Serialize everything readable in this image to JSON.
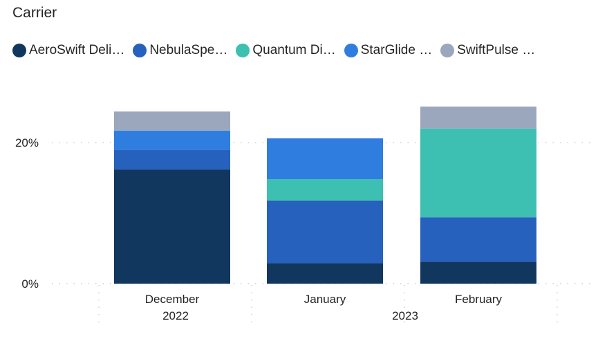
{
  "legend": {
    "title": "Carrier",
    "items": [
      {
        "label": "AeroSwift Deli…",
        "color": "#12375F",
        "icon": "circle-icon"
      },
      {
        "label": "NebulaSpe…",
        "color": "#2561BD",
        "icon": "circle-icon"
      },
      {
        "label": "Quantum Di…",
        "color": "#3DBFB2",
        "icon": "circle-icon"
      },
      {
        "label": "StarGlide …",
        "color": "#2F7EDF",
        "icon": "circle-icon"
      },
      {
        "label": "SwiftPulse …",
        "color": "#9BA7BC",
        "icon": "circle-icon"
      }
    ]
  },
  "chart_data": {
    "type": "bar",
    "stacked": true,
    "categories": [
      "December",
      "January",
      "February"
    ],
    "category_groups": [
      {
        "label": "2022",
        "categories": [
          "December"
        ]
      },
      {
        "label": "2023",
        "categories": [
          "January",
          "February"
        ]
      }
    ],
    "series": [
      {
        "name": "AeroSwift Deli…",
        "color": "#12375F",
        "values": [
          16.2,
          2.9,
          3.1
        ]
      },
      {
        "name": "NebulaSpe…",
        "color": "#2561BD",
        "values": [
          2.8,
          8.9,
          6.3
        ]
      },
      {
        "name": "Quantum Di…",
        "color": "#3DBFB2",
        "values": [
          0,
          3.0,
          12.6
        ]
      },
      {
        "name": "StarGlide …",
        "color": "#2F7EDF",
        "values": [
          2.7,
          5.8,
          0
        ]
      },
      {
        "name": "SwiftPulse …",
        "color": "#9BA7BC",
        "values": [
          2.7,
          0,
          3.1
        ]
      }
    ],
    "y_ticks": [
      {
        "value": 0,
        "label": "0%"
      },
      {
        "value": 20,
        "label": "20%"
      }
    ],
    "ylim": [
      0,
      25.5
    ],
    "grid": true,
    "legend_position": "top-left",
    "title": "",
    "xlabel": "",
    "ylabel": ""
  }
}
